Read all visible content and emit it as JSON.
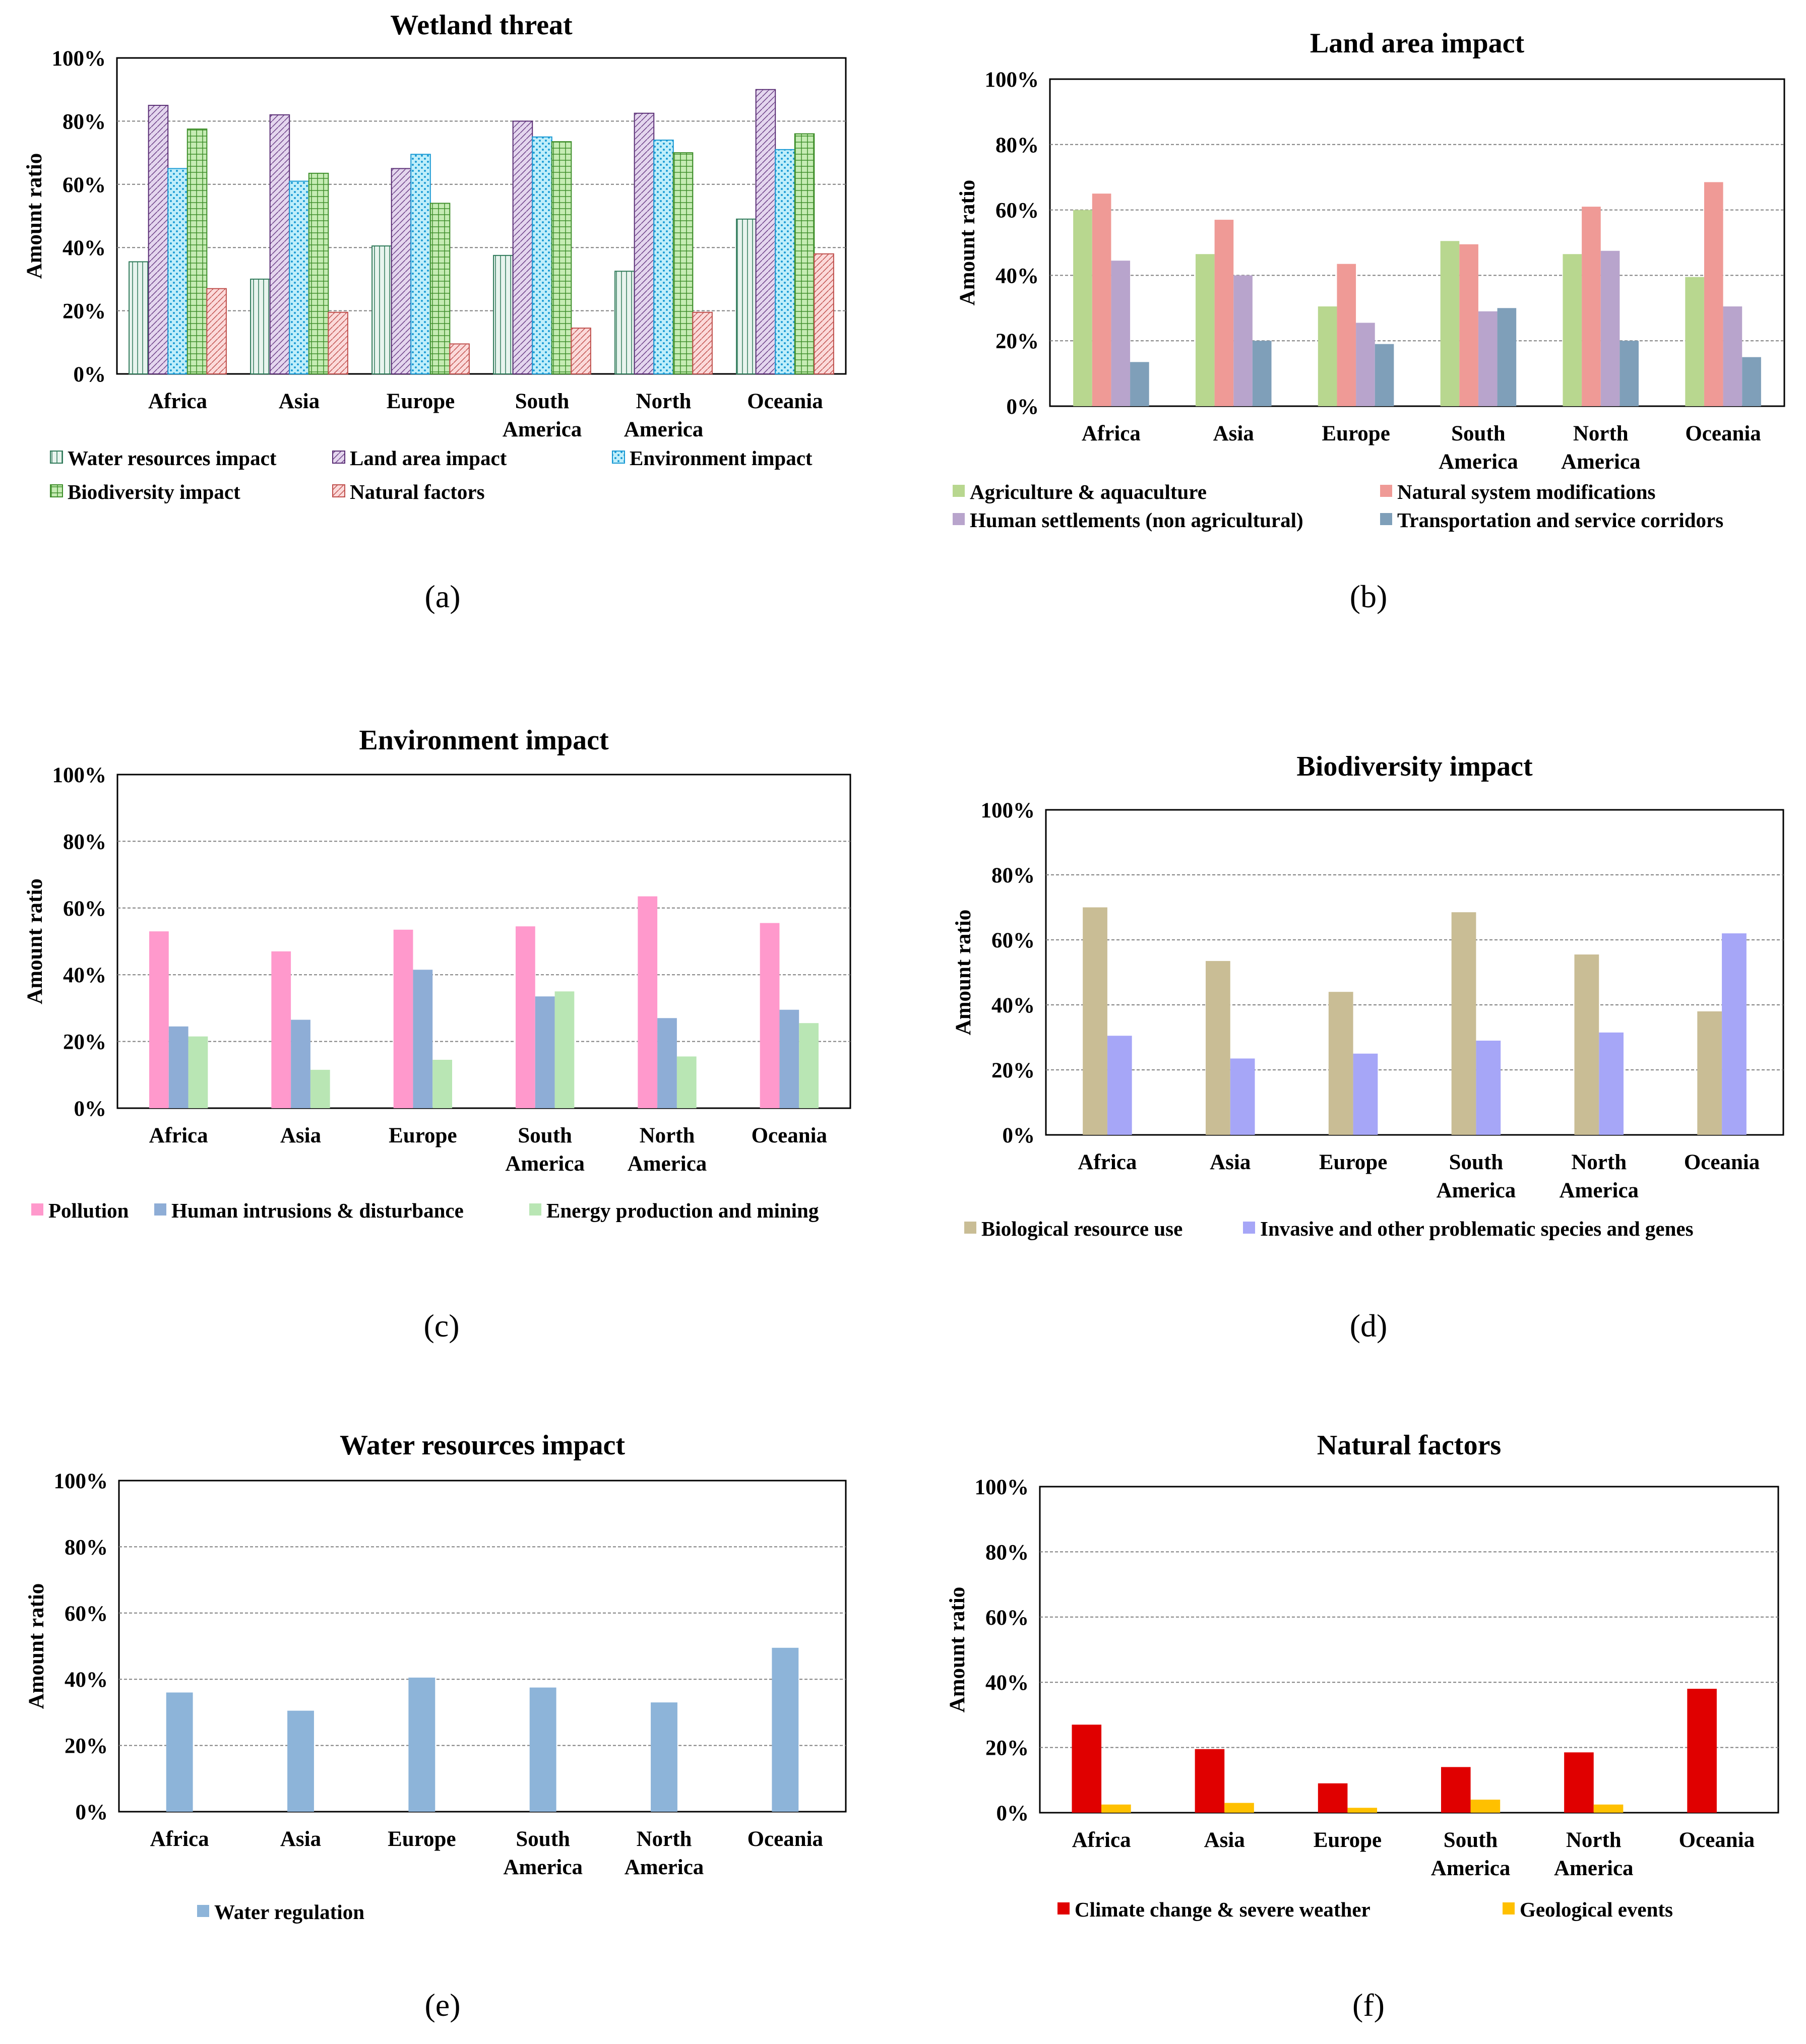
{
  "figure": {
    "captions": [
      "(a)",
      "(b)",
      "(c)",
      "(d)",
      "(e)",
      "(f)"
    ]
  },
  "chart_data": [
    {
      "type": "bar",
      "title": "Wetland threat",
      "xlabel": "",
      "ylabel": "Amount  ratio",
      "ylim": [
        0,
        100
      ],
      "yticks": [
        "0%",
        "20%",
        "40%",
        "60%",
        "80%",
        "100%"
      ],
      "grid": true,
      "legend_position": "bottom",
      "categories": [
        [
          "Africa"
        ],
        [
          "Asia"
        ],
        [
          "Europe"
        ],
        [
          "South",
          "America"
        ],
        [
          "North",
          "America"
        ],
        [
          "Oceania"
        ]
      ],
      "series": [
        {
          "name": "Water resources impact",
          "values": [
            35.5,
            30,
            40.5,
            37.5,
            32.5,
            49
          ],
          "color": "#e8f4ee",
          "border": "#2f7a5a",
          "pattern": "vline"
        },
        {
          "name": "Land area impact",
          "values": [
            85,
            82,
            65,
            80,
            82.5,
            90
          ],
          "color": "#e4d6ee",
          "border": "#5a2e75",
          "pattern": "diag"
        },
        {
          "name": "Environment impact",
          "values": [
            65,
            61,
            69.5,
            75,
            74,
            71
          ],
          "color": "#bfeefa",
          "border": "#1a9ad4",
          "pattern": "dots"
        },
        {
          "name": "Biodiversity impact",
          "values": [
            77.5,
            63.5,
            54,
            73.5,
            70,
            76
          ],
          "color": "#c6ecb4",
          "border": "#3f8f2b",
          "pattern": "grid"
        },
        {
          "name": "Natural factors",
          "values": [
            27,
            19.5,
            9.5,
            14.5,
            19.5,
            38
          ],
          "color": "#fbdada",
          "border": "#c0504d",
          "pattern": "diag"
        }
      ],
      "caption": "(a)"
    },
    {
      "type": "bar",
      "title": "Land area impact",
      "xlabel": "",
      "ylabel": "Amount  ratio",
      "ylim": [
        0,
        100
      ],
      "yticks": [
        "0%",
        "20%",
        "40%",
        "60%",
        "80%",
        "100%"
      ],
      "grid": true,
      "legend_position": "bottom",
      "categories": [
        [
          "Africa"
        ],
        [
          "Asia"
        ],
        [
          "Europe"
        ],
        [
          "South",
          "America"
        ],
        [
          "North",
          "America"
        ],
        [
          "Oceania"
        ]
      ],
      "series": [
        {
          "name": "Agriculture & aquaculture",
          "values": [
            60,
            46.5,
            30.5,
            50.5,
            46.5,
            39.5
          ],
          "color": "#b8d78f"
        },
        {
          "name": "Natural system modifications",
          "values": [
            65,
            57,
            43.5,
            49.5,
            61,
            68.5
          ],
          "color": "#ef9a96"
        },
        {
          "name": "Human settlements (non agricultural)",
          "values": [
            44.5,
            40,
            25.5,
            29,
            47.5,
            30.5
          ],
          "color": "#b8a4cc"
        },
        {
          "name": "Transportation and service corridors",
          "values": [
            13.5,
            20,
            19,
            30,
            20,
            15
          ],
          "color": "#7f9fb9"
        }
      ],
      "caption": "(b)"
    },
    {
      "type": "bar",
      "title": "Environment impact",
      "xlabel": "",
      "ylabel": "Amount  ratio",
      "ylim": [
        0,
        100
      ],
      "yticks": [
        "0%",
        "20%",
        "40%",
        "60%",
        "80%",
        "100%"
      ],
      "grid": true,
      "legend_position": "bottom",
      "categories": [
        [
          "Africa"
        ],
        [
          "Asia"
        ],
        [
          "Europe"
        ],
        [
          "South",
          "America"
        ],
        [
          "North",
          "America"
        ],
        [
          "Oceania"
        ]
      ],
      "series": [
        {
          "name": "Pollution",
          "values": [
            53,
            47,
            53.5,
            54.5,
            63.5,
            55.5
          ],
          "color": "#ff99cc"
        },
        {
          "name": "Human intrusions & disturbance",
          "values": [
            24.5,
            26.5,
            41.5,
            33.5,
            27,
            29.5
          ],
          "color": "#8eadd6"
        },
        {
          "name": "Energy production and mining",
          "values": [
            21.5,
            11.5,
            14.5,
            35,
            15.5,
            25.5
          ],
          "color": "#b9e6b4"
        }
      ],
      "caption": "(c)"
    },
    {
      "type": "bar",
      "title": "Biodiversity impact",
      "xlabel": "",
      "ylabel": "Amount  ratio",
      "ylim": [
        0,
        100
      ],
      "yticks": [
        "0%",
        "20%",
        "40%",
        "60%",
        "80%",
        "100%"
      ],
      "grid": true,
      "legend_position": "bottom",
      "categories": [
        [
          "Africa"
        ],
        [
          "Asia"
        ],
        [
          "Europe"
        ],
        [
          "South",
          "America"
        ],
        [
          "North",
          "America"
        ],
        [
          "Oceania"
        ]
      ],
      "series": [
        {
          "name": "Biological resource use",
          "values": [
            70,
            53.5,
            44,
            68.5,
            55.5,
            38
          ],
          "color": "#c9bd95"
        },
        {
          "name": "Invasive and other problematic species and genes",
          "values": [
            30.5,
            23.5,
            25,
            29,
            31.5,
            62
          ],
          "color": "#a6a6f7"
        }
      ],
      "caption": "(d)"
    },
    {
      "type": "bar",
      "title": "Water resources impact",
      "xlabel": "",
      "ylabel": "Amount  ratio",
      "ylim": [
        0,
        100
      ],
      "yticks": [
        "0%",
        "20%",
        "40%",
        "60%",
        "80%",
        "100%"
      ],
      "grid": true,
      "legend_position": "bottom",
      "categories": [
        [
          "Africa"
        ],
        [
          "Asia"
        ],
        [
          "Europe"
        ],
        [
          "South",
          "America"
        ],
        [
          "North",
          "America"
        ],
        [
          "Oceania"
        ]
      ],
      "series": [
        {
          "name": "Water regulation",
          "values": [
            36,
            30.5,
            40.5,
            37.5,
            33,
            49.5
          ],
          "color": "#8db4d9"
        }
      ],
      "caption": "(e)"
    },
    {
      "type": "bar",
      "title": "Natural factors",
      "xlabel": "",
      "ylabel": "Amount  ratio",
      "ylim": [
        0,
        100
      ],
      "yticks": [
        "0%",
        "20%",
        "40%",
        "60%",
        "80%",
        "100%"
      ],
      "grid": true,
      "legend_position": "bottom",
      "categories": [
        [
          "Africa"
        ],
        [
          "Asia"
        ],
        [
          "Europe"
        ],
        [
          "South",
          "America"
        ],
        [
          "North",
          "America"
        ],
        [
          "Oceania"
        ]
      ],
      "series": [
        {
          "name": "Climate change & severe weather",
          "values": [
            27,
            19.5,
            9,
            14,
            18.5,
            38
          ],
          "color": "#e00000"
        },
        {
          "name": "Geological events",
          "values": [
            2.5,
            3,
            1.5,
            4,
            2.5,
            0
          ],
          "color": "#ffc000"
        }
      ],
      "caption": "(f)"
    }
  ]
}
